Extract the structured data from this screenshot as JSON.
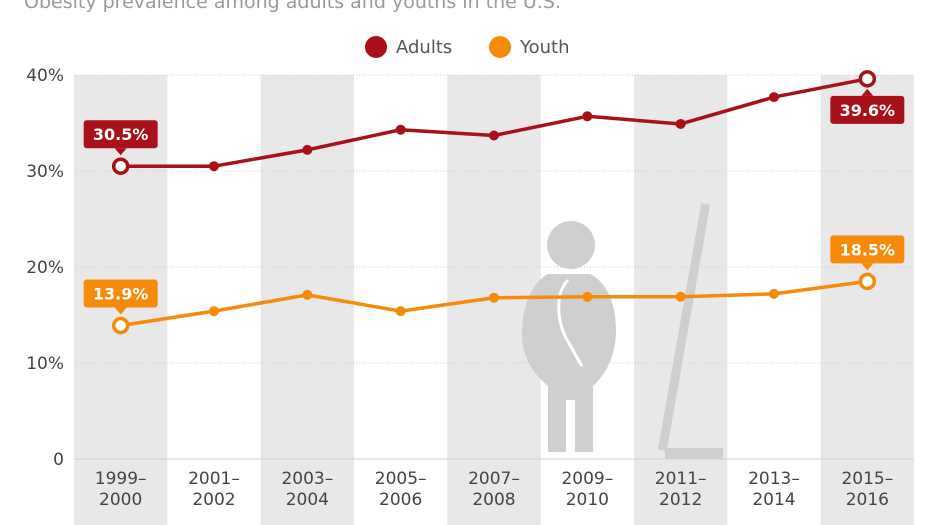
{
  "subtitle": "Obesity prevalence among adults and youths in the U.S.",
  "chart_data": {
    "type": "line",
    "subtitle": "Obesity prevalence among adults and youths in the U.S.",
    "categories": [
      [
        "1999–",
        "2000"
      ],
      [
        "2001–",
        "2002"
      ],
      [
        "2003–",
        "2004"
      ],
      [
        "2005–",
        "2006"
      ],
      [
        "2007–",
        "2008"
      ],
      [
        "2009–",
        "2010"
      ],
      [
        "2011–",
        "2012"
      ],
      [
        "2013–",
        "2014"
      ],
      [
        "2015–",
        "2016"
      ]
    ],
    "series": [
      {
        "name": "Adults",
        "color": "#a8111a",
        "values": [
          30.5,
          30.5,
          32.2,
          34.3,
          33.7,
          35.7,
          34.9,
          37.7,
          39.6
        ],
        "callouts": [
          {
            "index": 0,
            "label": "30.5%",
            "position": "above"
          },
          {
            "index": 8,
            "label": "39.6%",
            "position": "below"
          }
        ]
      },
      {
        "name": "Youth",
        "color": "#f58a0b",
        "values": [
          13.9,
          15.4,
          17.1,
          15.4,
          16.8,
          16.9,
          16.9,
          17.2,
          18.5
        ],
        "callouts": [
          {
            "index": 0,
            "label": "13.9%",
            "position": "above"
          },
          {
            "index": 8,
            "label": "18.5%",
            "position": "above"
          }
        ]
      }
    ],
    "y_ticks": [
      {
        "value": 0,
        "label": "0"
      },
      {
        "value": 10,
        "label": "10%"
      },
      {
        "value": 20,
        "label": "20%"
      },
      {
        "value": 30,
        "label": "30%"
      },
      {
        "value": 40,
        "label": "40%"
      }
    ],
    "ylim": [
      0,
      40
    ],
    "grid": true,
    "legend": "top-center",
    "background_bands": "alternating",
    "decoration": "silhouette-of-person-on-scale"
  }
}
